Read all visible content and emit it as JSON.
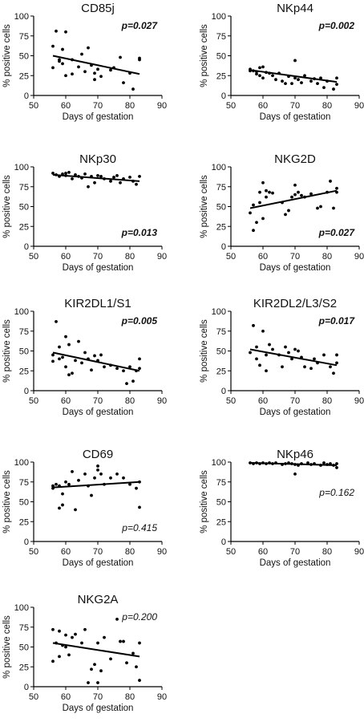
{
  "chart_data": [
    {
      "type": "scatter",
      "title": "CD85j",
      "xlabel": "Days of gestation",
      "ylabel": "% positive cells",
      "xlim": [
        50,
        90
      ],
      "ylim": [
        0,
        100
      ],
      "xticks": [
        "50",
        "60",
        "70",
        "80",
        "90"
      ],
      "yticks": [
        "0",
        "25",
        "50",
        "75",
        "100"
      ],
      "pvalue": "p=0.027",
      "pvalue_bold": true,
      "pvalue_loc": "upper-right",
      "points": [
        [
          56,
          35
        ],
        [
          56,
          62
        ],
        [
          57,
          81
        ],
        [
          58,
          45
        ],
        [
          58,
          43
        ],
        [
          59,
          40
        ],
        [
          59,
          58
        ],
        [
          60,
          80
        ],
        [
          60,
          25
        ],
        [
          62,
          45
        ],
        [
          62,
          27
        ],
        [
          64,
          36
        ],
        [
          65,
          52
        ],
        [
          66,
          30
        ],
        [
          67,
          60
        ],
        [
          68,
          38
        ],
        [
          69,
          28
        ],
        [
          69,
          20
        ],
        [
          70,
          33
        ],
        [
          71,
          24
        ],
        [
          74,
          32
        ],
        [
          75,
          35
        ],
        [
          77,
          48
        ],
        [
          78,
          16
        ],
        [
          80,
          28
        ],
        [
          81,
          8
        ],
        [
          83,
          45
        ],
        [
          83,
          47
        ]
      ],
      "fit": [
        [
          56,
          50
        ],
        [
          83,
          27
        ]
      ]
    },
    {
      "type": "scatter",
      "title": "NKp44",
      "xlabel": "Days of gestation",
      "ylabel": "% positive cells",
      "xlim": [
        50,
        90
      ],
      "ylim": [
        0,
        100
      ],
      "xticks": [
        "50",
        "60",
        "70",
        "80",
        "90"
      ],
      "yticks": [
        "0",
        "25",
        "50",
        "75",
        "100"
      ],
      "pvalue": "p=0.002",
      "pvalue_bold": true,
      "pvalue_loc": "upper-right",
      "points": [
        [
          56,
          33
        ],
        [
          56,
          31
        ],
        [
          57,
          31
        ],
        [
          58,
          30
        ],
        [
          58,
          27
        ],
        [
          59,
          35
        ],
        [
          59,
          25
        ],
        [
          60,
          22
        ],
        [
          60,
          36
        ],
        [
          61,
          29
        ],
        [
          62,
          28
        ],
        [
          63,
          25
        ],
        [
          64,
          20
        ],
        [
          65,
          28
        ],
        [
          66,
          18
        ],
        [
          67,
          15
        ],
        [
          68,
          24
        ],
        [
          69,
          15
        ],
        [
          70,
          44
        ],
        [
          70,
          22
        ],
        [
          71,
          20
        ],
        [
          72,
          16
        ],
        [
          73,
          25
        ],
        [
          75,
          18
        ],
        [
          76,
          21
        ],
        [
          77,
          15
        ],
        [
          78,
          22
        ],
        [
          79,
          10
        ],
        [
          80,
          18
        ],
        [
          82,
          8
        ],
        [
          83,
          22
        ],
        [
          83,
          14
        ]
      ],
      "fit": [
        [
          56,
          32
        ],
        [
          83,
          17
        ]
      ]
    },
    {
      "type": "scatter",
      "title": "NKp30",
      "xlabel": "Days of gestation",
      "ylabel": "% positive cells",
      "xlim": [
        50,
        90
      ],
      "ylim": [
        0,
        100
      ],
      "xticks": [
        "50",
        "60",
        "70",
        "80",
        "90"
      ],
      "yticks": [
        "0",
        "25",
        "50",
        "75",
        "100"
      ],
      "pvalue": "p=0.013",
      "pvalue_bold": true,
      "pvalue_loc": "lower-right",
      "points": [
        [
          56,
          92
        ],
        [
          57,
          90
        ],
        [
          58,
          88
        ],
        [
          59,
          91
        ],
        [
          60,
          89
        ],
        [
          60,
          92
        ],
        [
          61,
          93
        ],
        [
          62,
          85
        ],
        [
          63,
          90
        ],
        [
          64,
          88
        ],
        [
          65,
          86
        ],
        [
          66,
          91
        ],
        [
          67,
          75
        ],
        [
          68,
          88
        ],
        [
          69,
          80
        ],
        [
          70,
          89
        ],
        [
          71,
          88
        ],
        [
          72,
          85
        ],
        [
          74,
          82
        ],
        [
          75,
          87
        ],
        [
          76,
          89
        ],
        [
          77,
          80
        ],
        [
          78,
          85
        ],
        [
          80,
          87
        ],
        [
          81,
          82
        ],
        [
          82,
          78
        ],
        [
          83,
          88
        ]
      ],
      "fit": [
        [
          56,
          90
        ],
        [
          83,
          82
        ]
      ]
    },
    {
      "type": "scatter",
      "title": "NKG2D",
      "xlabel": "Days of gestation",
      "ylabel": "% positive cells",
      "xlim": [
        50,
        90
      ],
      "ylim": [
        0,
        100
      ],
      "xticks": [
        "50",
        "60",
        "70",
        "80",
        "90"
      ],
      "yticks": [
        "0",
        "25",
        "50",
        "75",
        "100"
      ],
      "pvalue": "p=0.027",
      "pvalue_bold": true,
      "pvalue_loc": "lower-right",
      "points": [
        [
          56,
          42
        ],
        [
          57,
          20
        ],
        [
          57,
          52
        ],
        [
          58,
          30
        ],
        [
          59,
          55
        ],
        [
          59,
          68
        ],
        [
          60,
          80
        ],
        [
          60,
          35
        ],
        [
          61,
          62
        ],
        [
          61,
          70
        ],
        [
          62,
          68
        ],
        [
          63,
          67
        ],
        [
          66,
          55
        ],
        [
          67,
          40
        ],
        [
          68,
          45
        ],
        [
          69,
          62
        ],
        [
          70,
          77
        ],
        [
          70,
          65
        ],
        [
          71,
          68
        ],
        [
          72,
          64
        ],
        [
          73,
          62
        ],
        [
          75,
          66
        ],
        [
          77,
          48
        ],
        [
          78,
          50
        ],
        [
          80,
          68
        ],
        [
          81,
          82
        ],
        [
          82,
          48
        ],
        [
          83,
          68
        ],
        [
          83,
          73
        ]
      ],
      "fit": [
        [
          56,
          48
        ],
        [
          83,
          70
        ]
      ]
    },
    {
      "type": "scatter",
      "title": "KIR2DL1/S1",
      "xlabel": "Days of gestation",
      "ylabel": "% positive cells",
      "xlim": [
        50,
        90
      ],
      "ylim": [
        0,
        100
      ],
      "xticks": [
        "50",
        "60",
        "70",
        "80",
        "90"
      ],
      "yticks": [
        "0",
        "25",
        "50",
        "75",
        "100"
      ],
      "pvalue": "p=0.005",
      "pvalue_bold": true,
      "pvalue_loc": "upper-right",
      "points": [
        [
          56,
          45
        ],
        [
          56,
          37
        ],
        [
          57,
          87
        ],
        [
          58,
          40
        ],
        [
          58,
          55
        ],
        [
          59,
          42
        ],
        [
          60,
          68
        ],
        [
          60,
          30
        ],
        [
          61,
          20
        ],
        [
          61,
          58
        ],
        [
          62,
          22
        ],
        [
          63,
          38
        ],
        [
          64,
          62
        ],
        [
          65,
          35
        ],
        [
          66,
          48
        ],
        [
          67,
          40
        ],
        [
          68,
          26
        ],
        [
          69,
          44
        ],
        [
          70,
          38
        ],
        [
          71,
          45
        ],
        [
          72,
          30
        ],
        [
          74,
          32
        ],
        [
          76,
          28
        ],
        [
          78,
          25
        ],
        [
          79,
          9
        ],
        [
          80,
          30
        ],
        [
          81,
          12
        ],
        [
          82,
          25
        ],
        [
          83,
          40
        ],
        [
          83,
          28
        ]
      ],
      "fit": [
        [
          56,
          48
        ],
        [
          83,
          25
        ]
      ]
    },
    {
      "type": "scatter",
      "title": "KIR2DL2/L3/S2",
      "xlabel": "Days of gestation",
      "ylabel": "% positive cells",
      "xlim": [
        50,
        90
      ],
      "ylim": [
        0,
        100
      ],
      "xticks": [
        "50",
        "60",
        "70",
        "80",
        "90"
      ],
      "yticks": [
        "0",
        "25",
        "50",
        "75",
        "100"
      ],
      "pvalue": "p=0.017",
      "pvalue_bold": true,
      "pvalue_loc": "upper-right",
      "points": [
        [
          56,
          48
        ],
        [
          57,
          82
        ],
        [
          58,
          55
        ],
        [
          58,
          40
        ],
        [
          59,
          32
        ],
        [
          60,
          75
        ],
        [
          61,
          25
        ],
        [
          61,
          45
        ],
        [
          62,
          58
        ],
        [
          63,
          52
        ],
        [
          65,
          45
        ],
        [
          66,
          30
        ],
        [
          67,
          55
        ],
        [
          68,
          48
        ],
        [
          69,
          40
        ],
        [
          70,
          52
        ],
        [
          71,
          50
        ],
        [
          72,
          42
        ],
        [
          73,
          30
        ],
        [
          75,
          28
        ],
        [
          76,
          40
        ],
        [
          77,
          35
        ],
        [
          79,
          45
        ],
        [
          81,
          30
        ],
        [
          82,
          22
        ],
        [
          83,
          45
        ],
        [
          83,
          35
        ]
      ],
      "fit": [
        [
          56,
          52
        ],
        [
          83,
          32
        ]
      ]
    },
    {
      "type": "scatter",
      "title": "CD69",
      "xlabel": "Days of gestation",
      "ylabel": "% positive cells",
      "xlim": [
        50,
        90
      ],
      "ylim": [
        0,
        100
      ],
      "xticks": [
        "50",
        "60",
        "70",
        "80",
        "90"
      ],
      "yticks": [
        "0",
        "25",
        "50",
        "75",
        "100"
      ],
      "pvalue": "p=0.415",
      "pvalue_bold": false,
      "pvalue_loc": "lower-right",
      "points": [
        [
          56,
          67
        ],
        [
          56,
          70
        ],
        [
          57,
          72
        ],
        [
          58,
          42
        ],
        [
          58,
          70
        ],
        [
          59,
          46
        ],
        [
          59,
          60
        ],
        [
          60,
          75
        ],
        [
          61,
          72
        ],
        [
          62,
          88
        ],
        [
          63,
          40
        ],
        [
          64,
          77
        ],
        [
          66,
          85
        ],
        [
          67,
          70
        ],
        [
          68,
          58
        ],
        [
          69,
          80
        ],
        [
          70,
          90
        ],
        [
          70,
          95
        ],
        [
          71,
          85
        ],
        [
          72,
          72
        ],
        [
          74,
          80
        ],
        [
          76,
          85
        ],
        [
          78,
          80
        ],
        [
          80,
          72
        ],
        [
          82,
          67
        ],
        [
          83,
          43
        ],
        [
          83,
          75
        ]
      ],
      "fit": [
        [
          56,
          68
        ],
        [
          83,
          75
        ]
      ]
    },
    {
      "type": "scatter",
      "title": "NKp46",
      "xlabel": "Days of gestation",
      "ylabel": "% positive cells",
      "xlim": [
        50,
        90
      ],
      "ylim": [
        0,
        100
      ],
      "xticks": [
        "50",
        "60",
        "70",
        "80",
        "90"
      ],
      "yticks": [
        "0",
        "25",
        "50",
        "75",
        "100"
      ],
      "pvalue": "p=0.162",
      "pvalue_bold": false,
      "pvalue_loc": "middle-right",
      "points": [
        [
          56,
          99
        ],
        [
          57,
          98
        ],
        [
          58,
          99
        ],
        [
          59,
          98
        ],
        [
          60,
          99
        ],
        [
          61,
          98
        ],
        [
          62,
          99
        ],
        [
          63,
          98
        ],
        [
          64,
          99
        ],
        [
          66,
          97
        ],
        [
          67,
          98
        ],
        [
          68,
          99
        ],
        [
          69,
          98
        ],
        [
          70,
          85
        ],
        [
          70,
          97
        ],
        [
          71,
          96
        ],
        [
          72,
          98
        ],
        [
          74,
          99
        ],
        [
          75,
          97
        ],
        [
          76,
          98
        ],
        [
          78,
          96
        ],
        [
          79,
          99
        ],
        [
          80,
          97
        ],
        [
          81,
          98
        ],
        [
          82,
          96
        ],
        [
          83,
          93
        ],
        [
          83,
          98
        ]
      ],
      "fit": [
        [
          56,
          99
        ],
        [
          83,
          96
        ]
      ]
    },
    {
      "type": "scatter",
      "title": "NKG2A",
      "xlabel": "Days of gestation",
      "ylabel": "% positive cells",
      "xlim": [
        50,
        90
      ],
      "ylim": [
        0,
        100
      ],
      "xticks": [
        "50",
        "60",
        "70",
        "80",
        "90"
      ],
      "yticks": [
        "0",
        "25",
        "50",
        "75",
        "100"
      ],
      "pvalue": "p=0.200",
      "pvalue_bold": false,
      "pvalue_loc": "upper-right",
      "points": [
        [
          56,
          32
        ],
        [
          56,
          72
        ],
        [
          57,
          55
        ],
        [
          58,
          38
        ],
        [
          58,
          70
        ],
        [
          59,
          52
        ],
        [
          60,
          50
        ],
        [
          60,
          65
        ],
        [
          61,
          40
        ],
        [
          62,
          62
        ],
        [
          63,
          66
        ],
        [
          65,
          55
        ],
        [
          66,
          72
        ],
        [
          67,
          5
        ],
        [
          68,
          22
        ],
        [
          69,
          28
        ],
        [
          70,
          5
        ],
        [
          70,
          55
        ],
        [
          71,
          20
        ],
        [
          72,
          62
        ],
        [
          74,
          35
        ],
        [
          76,
          85
        ],
        [
          77,
          57
        ],
        [
          78,
          57
        ],
        [
          79,
          30
        ],
        [
          81,
          42
        ],
        [
          82,
          25
        ],
        [
          83,
          55
        ],
        [
          83,
          8
        ]
      ],
      "fit": [
        [
          56,
          55
        ],
        [
          83,
          38
        ]
      ]
    }
  ]
}
